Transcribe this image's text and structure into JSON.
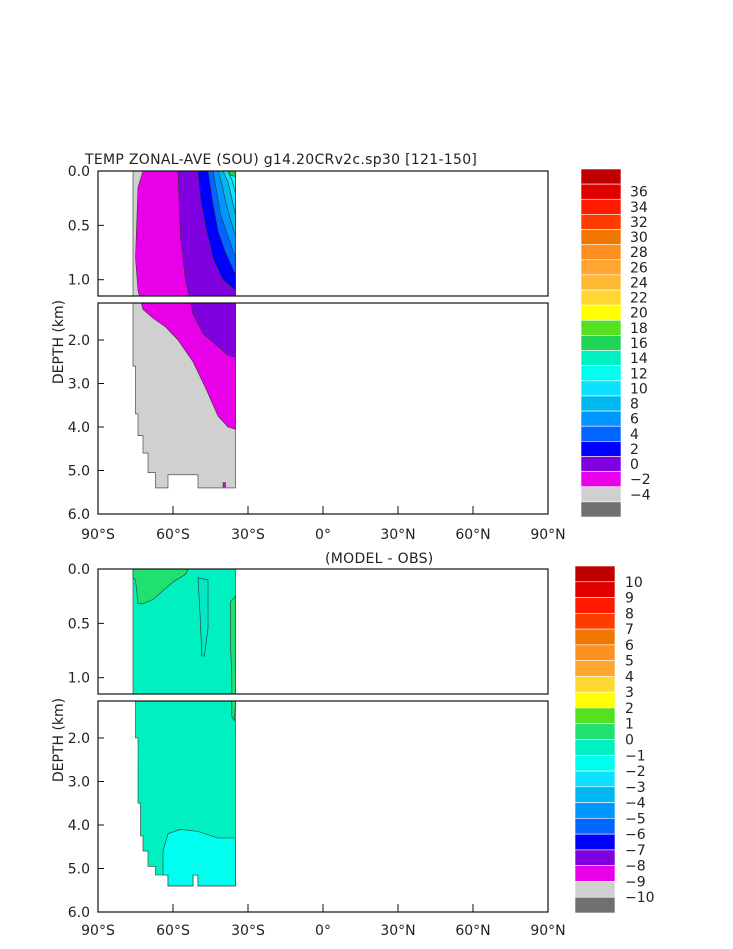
{
  "chart_data": [
    {
      "type": "heatmap",
      "title": "TEMP ZONAL-AVE (SOU) g14.20CRv2c.sp30 [121-150]",
      "ylabel": "DEPTH (km)",
      "xlabel": "",
      "xlim": [
        -90,
        90
      ],
      "x_tick_values": [
        -90,
        -60,
        -30,
        0,
        30,
        60,
        90
      ],
      "x_tick_labels": [
        "90°S",
        "60°S",
        "30°S",
        "0°",
        "30°N",
        "60°N",
        "90°N"
      ],
      "upper_depth_range": [
        0.0,
        1.15
      ],
      "lower_depth_range": [
        1.15,
        6.0
      ],
      "upper_tick_values": [
        0.0,
        0.5,
        1.0
      ],
      "upper_tick_labels": [
        "0.0",
        "0.5",
        "1.0"
      ],
      "lower_tick_values": [
        2.0,
        3.0,
        4.0,
        5.0,
        6.0
      ],
      "lower_tick_labels": [
        "2.0",
        "3.0",
        "4.0",
        "5.0",
        "6.0"
      ],
      "colorbar_labels": [
        "36",
        "34",
        "32",
        "30",
        "28",
        "26",
        "24",
        "22",
        "20",
        "18",
        "16",
        "14",
        "12",
        "10",
        "8",
        "6",
        "4",
        "2",
        "0",
        "-2",
        "-4"
      ],
      "colorbar_colors": [
        "#c00000",
        "#e00000",
        "#ff1a00",
        "#ff3c00",
        "#f07800",
        "#ff9020",
        "#ffa530",
        "#ffb833",
        "#ffd733",
        "#ffff00",
        "#55e020",
        "#20d455",
        "#00f0c0",
        "#00ffee",
        "#10e0ff",
        "#00b8f0",
        "#0096ff",
        "#0066ff",
        "#0000ff",
        "#8000e0",
        "#e800e8",
        "#d0d0d0",
        "#707070"
      ],
      "regions": [
        {
          "name": "below -2",
          "color": "#d0d0d0",
          "lat": [
            -76,
            -35
          ],
          "depth_top": 0.0,
          "depth_bottom": 5.4,
          "note": "land/sea mask outline"
        },
        {
          "name": "0 to 2",
          "color": "#e800e8",
          "lat": [
            -74,
            -35
          ],
          "depth_top": 0.0,
          "depth_bottom": 4.05
        },
        {
          "name": "2 to 4",
          "color": "#8000e0",
          "lat": [
            -58,
            -35
          ],
          "depth_top": 0.0,
          "depth_bottom": 2.4
        },
        {
          "name": "4 to 6",
          "color": "#0000ff",
          "lat": [
            -50,
            -35
          ],
          "depth_top": 0.0,
          "depth_bottom": 1.1
        },
        {
          "name": "warm surface 6 to 16",
          "color": "#00b8f0",
          "lat": [
            -44,
            -35
          ],
          "depth_top": 0.0,
          "depth_bottom": 0.85
        }
      ]
    },
    {
      "type": "heatmap",
      "title": "(MODEL - OBS)",
      "ylabel": "DEPTH (km)",
      "xlabel": "",
      "xlim": [
        -90,
        90
      ],
      "x_tick_values": [
        -90,
        -60,
        -30,
        0,
        30,
        60,
        90
      ],
      "x_tick_labels": [
        "90°S",
        "60°S",
        "30°S",
        "0°",
        "30°N",
        "60°N",
        "90°N"
      ],
      "upper_depth_range": [
        0.0,
        1.15
      ],
      "lower_depth_range": [
        1.15,
        6.0
      ],
      "upper_tick_values": [
        0.0,
        0.5,
        1.0
      ],
      "upper_tick_labels": [
        "0.0",
        "0.5",
        "1.0"
      ],
      "lower_tick_values": [
        2.0,
        3.0,
        4.0,
        5.0,
        6.0
      ],
      "lower_tick_labels": [
        "2.0",
        "3.0",
        "4.0",
        "5.0",
        "6.0"
      ],
      "colorbar_labels": [
        "10",
        "9",
        "8",
        "7",
        "6",
        "5",
        "4",
        "3",
        "2",
        "1",
        "0",
        "-1",
        "-2",
        "-3",
        "-4",
        "-5",
        "-6",
        "-7",
        "-8",
        "-9",
        "-10"
      ],
      "colorbar_colors": [
        "#c00000",
        "#e00000",
        "#ff1a00",
        "#ff3c00",
        "#f07800",
        "#ff9020",
        "#ffa530",
        "#ffd733",
        "#ffff00",
        "#55e020",
        "#20e070",
        "#00f0c0",
        "#00ffee",
        "#10e0ff",
        "#00b8f0",
        "#0096ff",
        "#0066ff",
        "#0000ff",
        "#8000e0",
        "#e800e8",
        "#d0d0d0",
        "#707070"
      ],
      "regions": [
        {
          "name": "-1 to 0",
          "color": "#00f0c0",
          "lat": [
            -76,
            -35
          ],
          "depth_top": 0.0,
          "depth_bottom": 5.4
        },
        {
          "name": "0 to 1",
          "color": "#20e070",
          "lat": [
            -76,
            -60
          ],
          "depth_top": 0.0,
          "depth_bottom": 0.35
        },
        {
          "name": "-2 to -1 bottom",
          "color": "#00ffee",
          "lat": [
            -62,
            -35
          ],
          "depth_top": 4.1,
          "depth_bottom": 5.4
        }
      ]
    }
  ]
}
